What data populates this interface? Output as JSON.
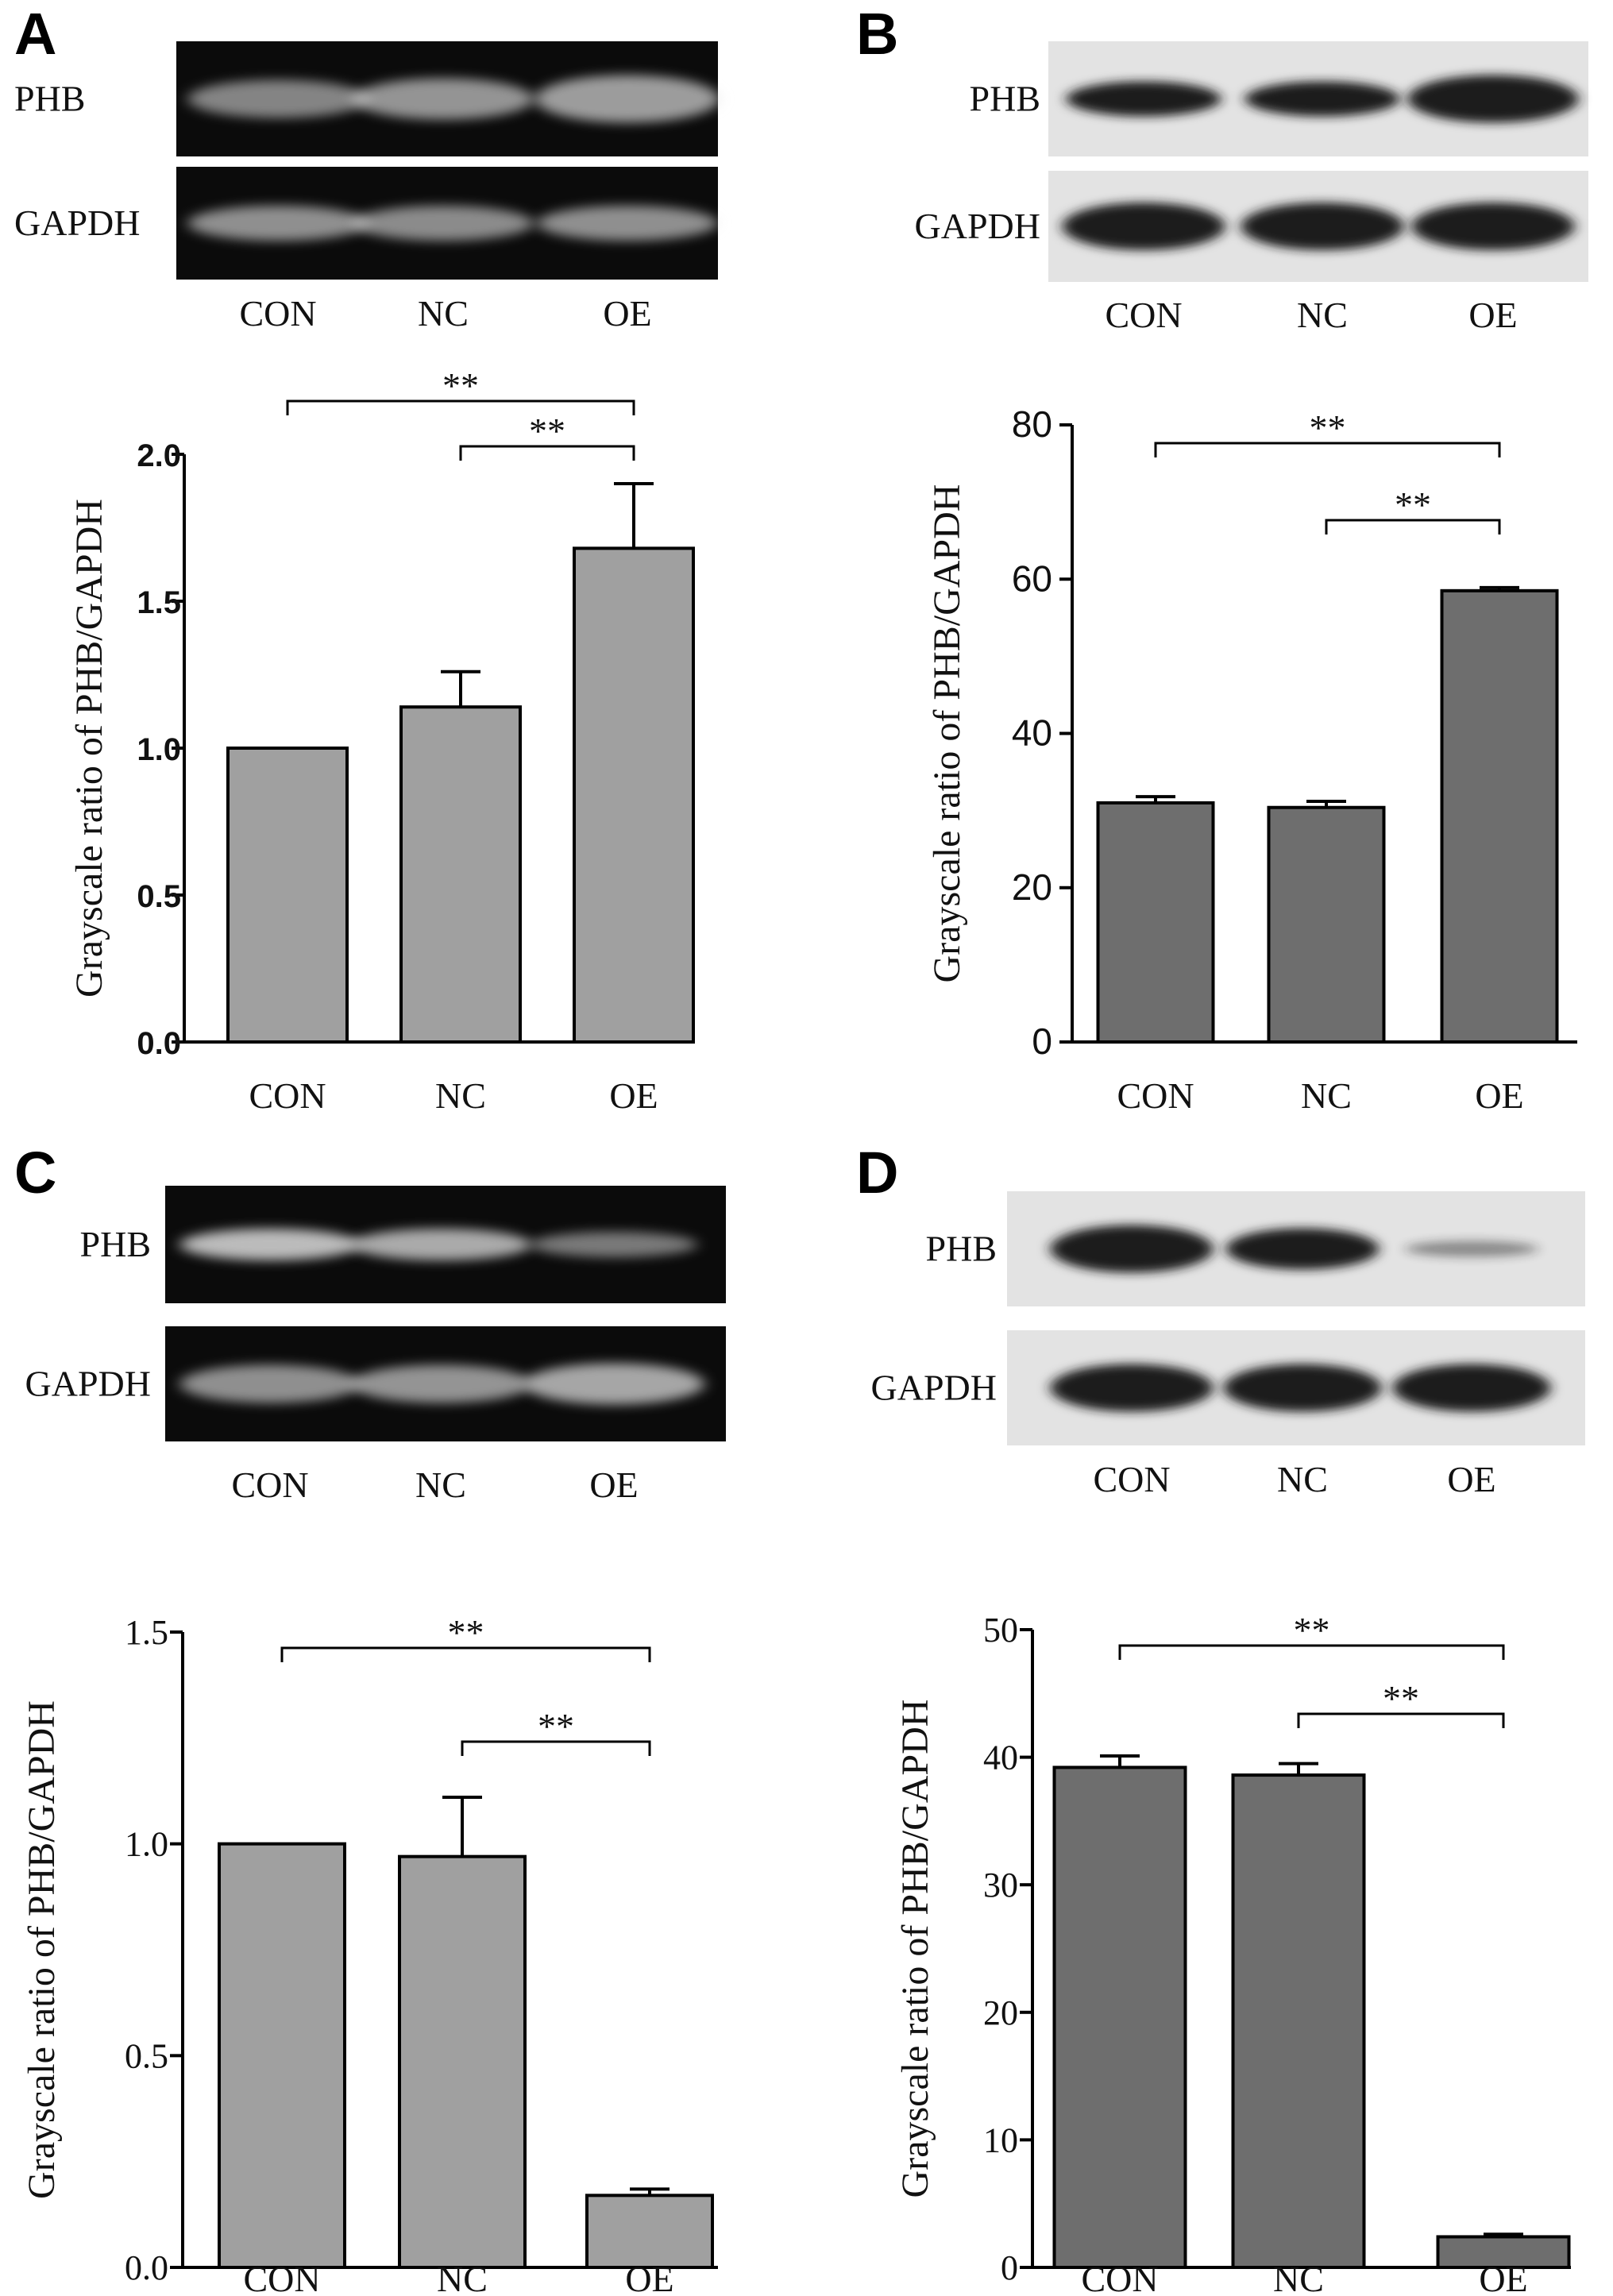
{
  "figure": {
    "panels": [
      {
        "letter": "A",
        "blot": {
          "style": "gel",
          "rows": [
            "PHB",
            "GAPDH"
          ],
          "lanes": [
            "CON",
            "NC",
            "OE"
          ]
        },
        "chart_data": {
          "type": "bar",
          "categories": [
            "CON",
            "NC",
            "OE"
          ],
          "values": [
            1.0,
            1.14,
            1.68
          ],
          "errors": [
            0,
            0.12,
            0.22
          ],
          "ylim": [
            0,
            2.0
          ],
          "yticks": [
            "0.0",
            "0.5",
            "1.0",
            "1.5",
            "2.0"
          ],
          "ylabel": "Grayscale ratio of PHB/GAPDH",
          "xlabel": "",
          "bar_color": "#a0a0a0",
          "significance": [
            {
              "from": "CON",
              "to": "OE",
              "label": "**"
            },
            {
              "from": "NC",
              "to": "OE",
              "label": "**"
            }
          ]
        }
      },
      {
        "letter": "B",
        "blot": {
          "style": "western",
          "rows": [
            "PHB",
            "GAPDH"
          ],
          "lanes": [
            "CON",
            "NC",
            "OE"
          ]
        },
        "chart_data": {
          "type": "bar",
          "categories": [
            "CON",
            "NC",
            "OE"
          ],
          "values": [
            31.0,
            30.4,
            58.5
          ],
          "errors": [
            0.8,
            0.8,
            0.4
          ],
          "ylim": [
            0,
            80
          ],
          "yticks": [
            "0",
            "20",
            "40",
            "60",
            "80"
          ],
          "ylabel": "Grayscale ratio of PHB/GAPDH",
          "xlabel": "",
          "bar_color": "#6e6e6e",
          "significance": [
            {
              "from": "CON",
              "to": "OE",
              "label": "**"
            },
            {
              "from": "NC",
              "to": "OE",
              "label": "**"
            }
          ]
        }
      },
      {
        "letter": "C",
        "blot": {
          "style": "gel",
          "rows": [
            "PHB",
            "GAPDH"
          ],
          "lanes": [
            "CON",
            "NC",
            "OE"
          ]
        },
        "chart_data": {
          "type": "bar",
          "categories": [
            "CON",
            "NC",
            "OE"
          ],
          "values": [
            1.0,
            0.97,
            0.17
          ],
          "errors": [
            0,
            0.14,
            0.015
          ],
          "ylim": [
            0,
            1.5
          ],
          "yticks": [
            "0.0",
            "0.5",
            "1.0",
            "1.5"
          ],
          "ylabel": "Grayscale ratio of PHB/GAPDH",
          "xlabel": "",
          "bar_color": "#a0a0a0",
          "significance": [
            {
              "from": "CON",
              "to": "OE",
              "label": "**"
            },
            {
              "from": "NC",
              "to": "OE",
              "label": "**"
            }
          ]
        }
      },
      {
        "letter": "D",
        "blot": {
          "style": "western",
          "rows": [
            "PHB",
            "GAPDH"
          ],
          "lanes": [
            "CON",
            "NC",
            "OE"
          ]
        },
        "chart_data": {
          "type": "bar",
          "categories": [
            "CON",
            "NC",
            "OE"
          ],
          "values": [
            39.2,
            38.6,
            2.4
          ],
          "errors": [
            0.9,
            0.9,
            0.2
          ],
          "ylim": [
            0,
            50
          ],
          "yticks": [
            "0",
            "10",
            "20",
            "30",
            "40",
            "50"
          ],
          "ylabel": "Grayscale ratio of PHB/GAPDH",
          "xlabel": "",
          "bar_color": "#6e6e6e",
          "significance": [
            {
              "from": "CON",
              "to": "OE",
              "label": "**"
            },
            {
              "from": "NC",
              "to": "OE",
              "label": "**"
            }
          ]
        }
      }
    ]
  }
}
